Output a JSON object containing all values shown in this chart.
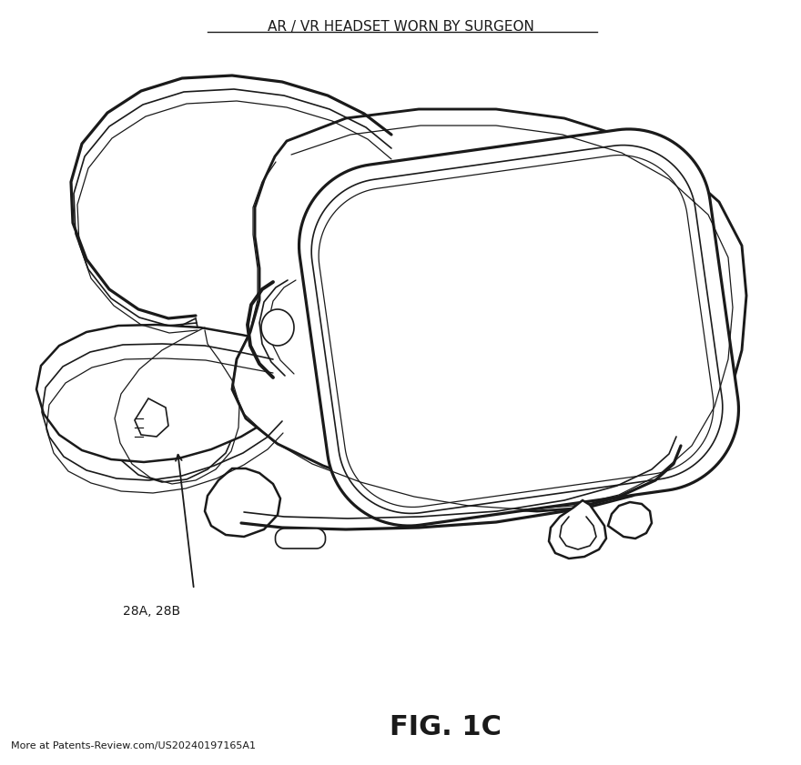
{
  "title": "AR / VR HEADSET WORN BY SURGEON",
  "fig_label": "FIG. 1C",
  "patent_text": "More at Patents-Review.com/US20240197165A1",
  "annotation_label": "28A, 28B",
  "bg_color": "#ffffff",
  "line_color": "#1a1a1a",
  "title_fontsize": 11,
  "fig_label_fontsize": 22,
  "patent_fontsize": 8,
  "annotation_fontsize": 10,
  "figsize": [
    8.8,
    8.41
  ],
  "dpi": 100
}
